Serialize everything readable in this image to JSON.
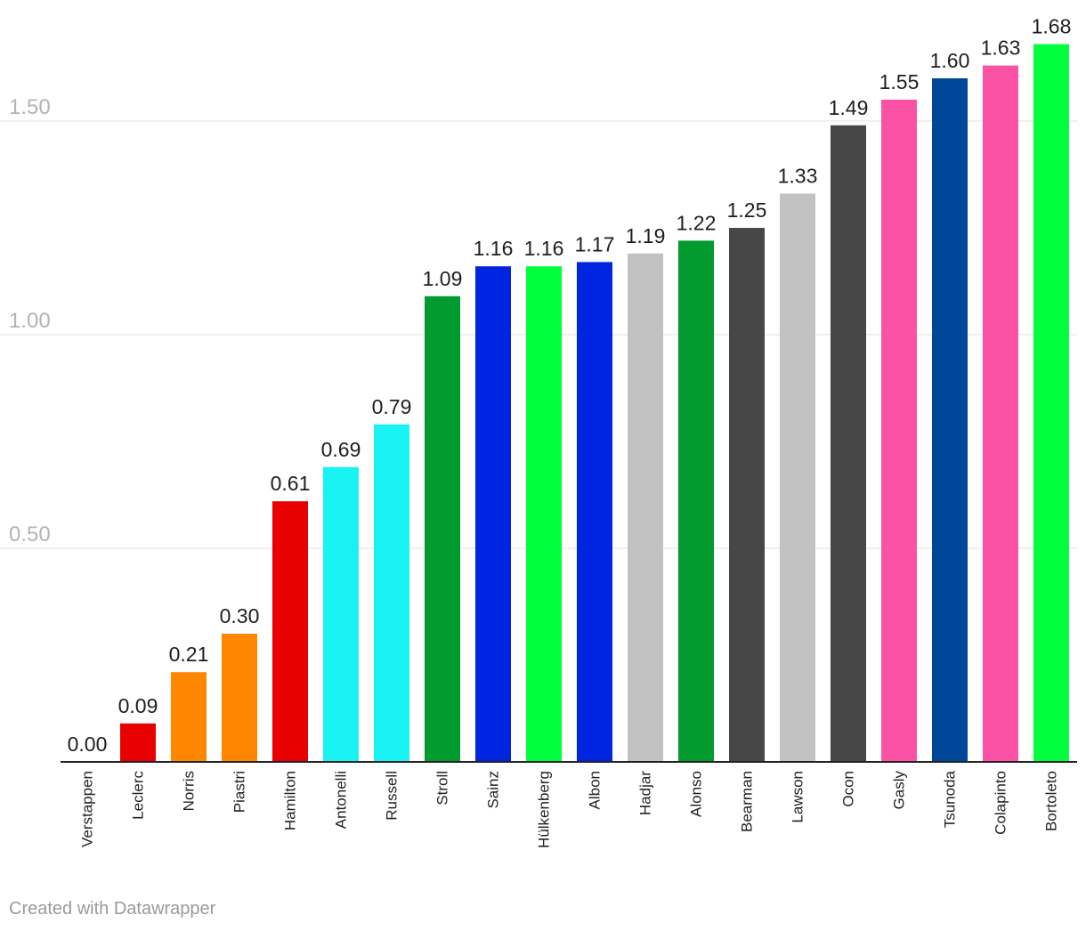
{
  "chart_data": {
    "type": "bar",
    "title": "",
    "xlabel": "",
    "ylabel": "",
    "ylim": [
      0,
      1.68
    ],
    "yticks": [
      "0.50",
      "1.00",
      "1.50"
    ],
    "ytick_values": [
      0.5,
      1.0,
      1.5
    ],
    "grid": true,
    "categories": [
      "Verstappen",
      "Leclerc",
      "Norris",
      "Piastri",
      "Hamilton",
      "Antonelli",
      "Russell",
      "Stroll",
      "Sainz",
      "Hülkenberg",
      "Albon",
      "Hadjar",
      "Alonso",
      "Bearman",
      "Lawson",
      "Ocon",
      "Gasly",
      "Tsunoda",
      "Colapinto",
      "Bortoleto"
    ],
    "values": [
      0.0,
      0.09,
      0.21,
      0.3,
      0.61,
      0.69,
      0.79,
      1.09,
      1.16,
      1.16,
      1.17,
      1.19,
      1.22,
      1.25,
      1.33,
      1.49,
      1.55,
      1.6,
      1.63,
      1.68
    ],
    "value_labels": [
      "0.00",
      "0.09",
      "0.21",
      "0.30",
      "0.61",
      "0.69",
      "0.79",
      "1.09",
      "1.16",
      "1.16",
      "1.17",
      "1.19",
      "1.22",
      "1.25",
      "1.33",
      "1.49",
      "1.55",
      "1.60",
      "1.63",
      "1.68"
    ],
    "colors": [
      "#1e41ff",
      "#e80000",
      "#ff8700",
      "#ff8700",
      "#e80000",
      "#18f2f2",
      "#18f2f2",
      "#009a2e",
      "#0025e0",
      "#00ff3c",
      "#0025e0",
      "#c2c2c2",
      "#009a2e",
      "#474747",
      "#c2c2c2",
      "#474747",
      "#fc52a6",
      "#00479a",
      "#fc52a6",
      "#00ff3c"
    ]
  },
  "footer": {
    "credit": "Created with Datawrapper"
  }
}
